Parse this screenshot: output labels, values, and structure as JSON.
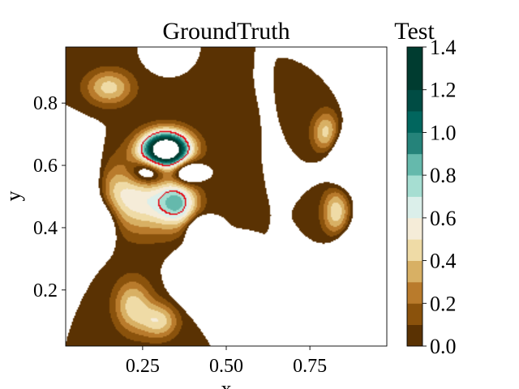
{
  "chart_data": [
    {
      "type": "heatmap",
      "subtype": "filled-contour",
      "title": "GroundTruth",
      "xlabel": "x",
      "ylabel": "y",
      "xlim": [
        0.02,
        0.98
      ],
      "ylim": [
        0.02,
        0.98
      ],
      "xticks": [
        0.25,
        0.5,
        0.75
      ],
      "xtick_labels": [
        "0.25",
        "0.50",
        "0.75"
      ],
      "yticks": [
        0.2,
        0.4,
        0.6,
        0.8
      ],
      "ytick_labels": [
        "0.2",
        "0.4",
        "0.6",
        "0.8"
      ],
      "highlight_contour": {
        "level": 0.7,
        "color": "#e8000b"
      },
      "blobs": [
        {
          "x": 0.05,
          "y": 0.52,
          "sx": 0.05,
          "sy": 0.09,
          "a": -0.75
        },
        {
          "x": 0.12,
          "y": 0.42,
          "sx": 0.04,
          "sy": 0.05,
          "a": -0.5
        },
        {
          "x": 0.32,
          "y": 0.65,
          "sx": 0.05,
          "sy": 0.04,
          "a": 1.9
        },
        {
          "x": 0.27,
          "y": 0.58,
          "sx": 0.04,
          "sy": 0.03,
          "a": -0.55
        },
        {
          "x": 0.38,
          "y": 0.58,
          "sx": 0.03,
          "sy": 0.03,
          "a": -0.55
        },
        {
          "x": 0.42,
          "y": 0.24,
          "sx": 0.04,
          "sy": 0.05,
          "a": -0.9
        },
        {
          "x": 0.42,
          "y": 0.39,
          "sx": 0.025,
          "sy": 0.03,
          "a": -0.55
        },
        {
          "x": 0.3,
          "y": 0.95,
          "sx": 0.02,
          "sy": 0.02,
          "a": -0.45
        },
        {
          "x": 0.18,
          "y": 0.5,
          "sx": 0.07,
          "sy": 0.08,
          "a": 0.5
        },
        {
          "x": 0.3,
          "y": 0.48,
          "sx": 0.06,
          "sy": 0.07,
          "a": 0.4
        },
        {
          "x": 0.15,
          "y": 0.85,
          "sx": 0.05,
          "sy": 0.04,
          "a": 0.45
        },
        {
          "x": 0.22,
          "y": 0.15,
          "sx": 0.04,
          "sy": 0.06,
          "a": 0.45
        },
        {
          "x": 0.3,
          "y": 0.1,
          "sx": 0.04,
          "sy": 0.04,
          "a": 0.45
        },
        {
          "x": 0.36,
          "y": 0.48,
          "sx": 0.04,
          "sy": 0.05,
          "a": 0.6
        }
      ]
    },
    {
      "type": "heatmap",
      "subtype": "filled-contour",
      "title": "Test",
      "xlim": [
        0.02,
        0.98
      ],
      "ylim": [
        0.02,
        0.98
      ],
      "highlight_contour": {
        "level": 0.7,
        "color": "#e8000b"
      },
      "blobs": [
        {
          "x": 0.88,
          "y": 0.62,
          "sx": 0.05,
          "sy": 0.06,
          "a": -0.7
        },
        {
          "x": 0.96,
          "y": 0.45,
          "sx": 0.04,
          "sy": 0.05,
          "a": -0.7
        },
        {
          "x": 0.9,
          "y": 0.3,
          "sx": 0.05,
          "sy": 0.06,
          "a": -0.8
        },
        {
          "x": 0.93,
          "y": 0.85,
          "sx": 0.04,
          "sy": 0.08,
          "a": -0.6
        },
        {
          "x": 0.85,
          "y": 0.18,
          "sx": 0.04,
          "sy": 0.04,
          "a": -0.5
        },
        {
          "x": 0.83,
          "y": 0.45,
          "sx": 0.03,
          "sy": 0.06,
          "a": 0.5
        },
        {
          "x": 0.8,
          "y": 0.7,
          "sx": 0.03,
          "sy": 0.05,
          "a": 0.5
        }
      ]
    },
    {
      "type": "colorbar",
      "levels": [
        0.0,
        0.1,
        0.2,
        0.3,
        0.4,
        0.5,
        0.6,
        0.7,
        0.8,
        0.9,
        1.0,
        1.1,
        1.2,
        1.3,
        1.4
      ],
      "colors": [
        "#5a3203",
        "#8a520c",
        "#b97b2c",
        "#d8b064",
        "#efdba6",
        "#f5ecd8",
        "#dbefea",
        "#a6ded2",
        "#65b9ac",
        "#25837a",
        "#01665e",
        "#004c44",
        "#003c30",
        "#003c30"
      ],
      "ticks": [
        0.0,
        0.2,
        0.4,
        0.6,
        0.8,
        1.0,
        1.2,
        1.4
      ],
      "tick_labels": [
        "0.0",
        "0.2",
        "0.4",
        "0.6",
        "0.8",
        "1.0",
        "1.2",
        "1.4"
      ]
    }
  ]
}
